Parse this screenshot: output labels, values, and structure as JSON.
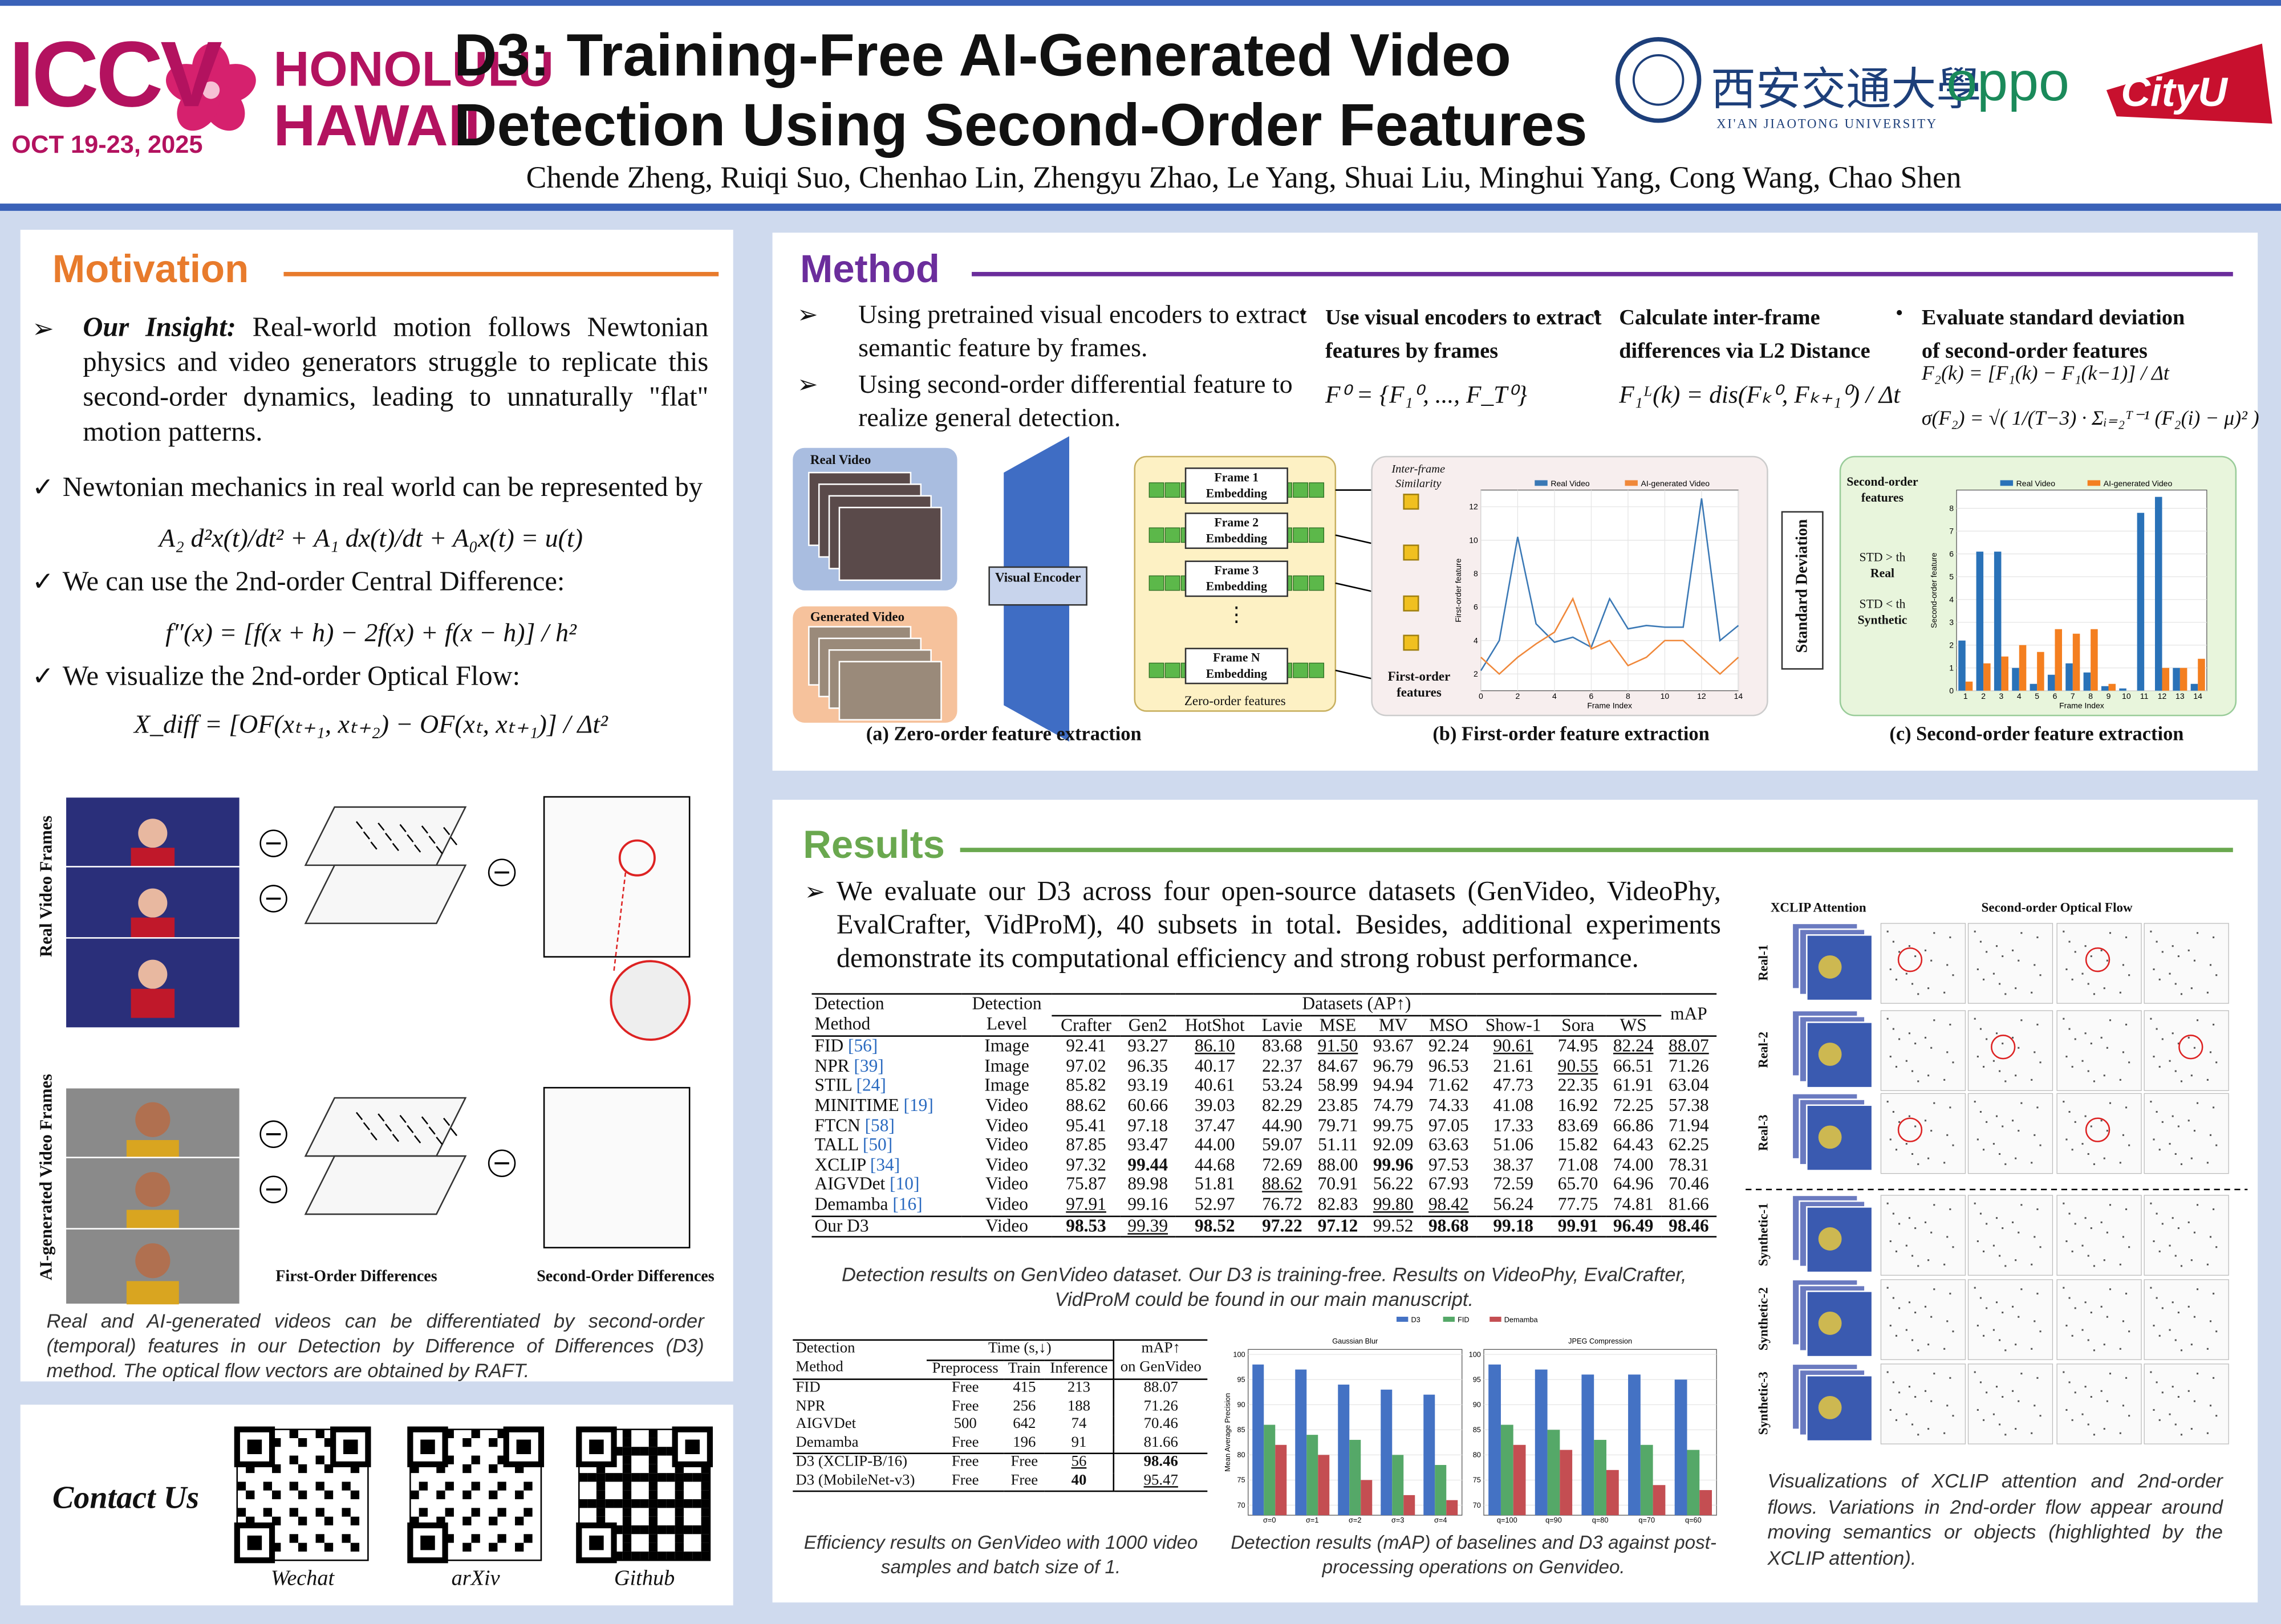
{
  "header": {
    "conference": "ICCV",
    "dates": "OCT 19-23, 2025",
    "location": [
      "HONOLULU",
      "HAWAII"
    ],
    "title": [
      "D3: Training-Free AI-Generated Video",
      "Detection Using Second-Order Features"
    ],
    "authors": "Chende Zheng, Ruiqi Suo, Chenhao Lin, Zhengyu Zhao, Le Yang, Shuai Liu, Minghui Yang, Cong Wang, Chao Shen",
    "affiliations": [
      "西安交通大學",
      "XI'AN JIAOTONG UNIVERSITY",
      "oppo",
      "CityU"
    ]
  },
  "motivation": {
    "heading": "Motivation",
    "insight_label": "Our Insight:",
    "insight": "Real-world motion follows Newtonian physics and video generators struggle to replicate this second-order dynamics, leading to unnaturally \"flat\" motion patterns.",
    "points": [
      {
        "text": "Newtonian mechanics in real world can be represented by",
        "formula": "A₂ d²x(t)/dt² + A₁ dx(t)/dt + A₀x(t) = u(t)"
      },
      {
        "text": "We can use the 2nd-order Central Difference:",
        "formula": "f″(x) = [f(x + h) − 2f(x) + f(x − h)] / h²"
      },
      {
        "text": "We visualize the 2nd-order Optical Flow:",
        "formula": "X_diff = [OF(xₜ₊₁, xₜ₊₂) − OF(xₜ, xₜ₊₁)] / Δt²"
      }
    ],
    "figure_labels": [
      "Real Video Frames",
      "AI-generated Video Frames",
      "First-Order Differences",
      "Second-Order Differences"
    ],
    "caption": "Real and AI-generated videos can be differentiated by second-order (temporal) features in our Detection by Difference of Differences (D3) method. The optical flow vectors are obtained by RAFT."
  },
  "contact": {
    "heading": "Contact Us",
    "qr_labels": [
      "Wechat",
      "arXiv",
      "Github"
    ]
  },
  "method": {
    "heading": "Method",
    "bullets": [
      "Using pretrained visual encoders to extract semantic feature by frames.",
      "Using second-order differential feature to realize general detection."
    ],
    "steps": [
      {
        "title": "Use visual encoders to extract features by frames",
        "formulas": [
          "F⁰ = {F₁⁰, ..., F_T⁰}"
        ]
      },
      {
        "title": "Calculate inter-frame differences via L2 Distance",
        "formulas": [
          "F₁ᴸ(k) = dis(Fₖ⁰, Fₖ₊₁⁰) / Δt"
        ]
      },
      {
        "title": "Evaluate standard deviation of second-order features",
        "formulas": [
          "F₂(k) = [F₁(k) − F₁(k−1)] / Δt",
          "σ(F₂) = √( 1/(T−3) · Σᵢ₌₂ᵀ⁻¹ (F₂(i) − μ)² )"
        ]
      }
    ],
    "figure": {
      "real_video": "Real Video",
      "generated_video": "Generated Video",
      "encoder": "Visual Encoder",
      "embeddings": [
        "Frame 1 Embedding",
        "Frame 2 Embedding",
        "Frame 3 Embedding",
        "Frame N Embedding"
      ],
      "zero_order": "Zero-order features",
      "similarity": "Inter-frame Similarity",
      "first_order": "First-order features",
      "std": "Standard Deviation",
      "second_order": "Second-order features",
      "rules": [
        "STD > th",
        "Real",
        "STD < th",
        "Synthetic"
      ],
      "captions": [
        "(a) Zero-order feature extraction",
        "(b) First-order feature extraction",
        "(c) Second-order feature extraction"
      ]
    },
    "first_order_chart": {
      "type": "line",
      "xlabel": "Frame Index",
      "ylabel": "First-order feature",
      "xlim": [
        0,
        14
      ],
      "xticks": [
        0,
        2,
        4,
        6,
        8,
        10,
        12,
        14
      ],
      "ylim": [
        1,
        13
      ],
      "yticks": [
        2,
        4,
        6,
        8,
        10,
        12
      ],
      "x": [
        0,
        1,
        2,
        3,
        4,
        5,
        6,
        7,
        8,
        9,
        10,
        11,
        12,
        13,
        14
      ],
      "series": [
        {
          "name": "Real Video",
          "color": "#3a78b5",
          "values": [
            2.2,
            4,
            10.2,
            5,
            3.9,
            4.2,
            3.6,
            6.5,
            4.7,
            4.9,
            4.8,
            4.8,
            12.5,
            4,
            4.9
          ]
        },
        {
          "name": "AI-generated Video",
          "color": "#f0883a",
          "values": [
            3,
            2,
            3,
            3.8,
            4.5,
            6.5,
            3.5,
            4,
            2.5,
            3,
            4,
            4,
            3,
            2,
            3
          ]
        }
      ]
    },
    "second_order_chart": {
      "type": "bar",
      "xlabel": "Frame Index",
      "ylabel": "Second-order feature",
      "categories": [
        "1",
        "2",
        "3",
        "4",
        "5",
        "6",
        "7",
        "8",
        "9",
        "10",
        "11",
        "12",
        "13",
        "14"
      ],
      "ylim": [
        0,
        8.8
      ],
      "yticks": [
        0,
        1,
        2,
        3,
        4,
        5,
        6,
        7,
        8
      ],
      "series": [
        {
          "name": "Real Video",
          "color": "#2a72b8",
          "values": [
            2.2,
            6.1,
            6.1,
            1,
            0.3,
            0.7,
            1.2,
            0.8,
            0.2,
            0.1,
            7.8,
            8.5,
            1,
            0.3
          ]
        },
        {
          "name": "AI-generated Video",
          "color": "#f47f20",
          "values": [
            0.4,
            1.2,
            1.5,
            2,
            1.7,
            2.7,
            2.5,
            2.7,
            0.3,
            0,
            0,
            1,
            1,
            1.4
          ]
        }
      ]
    }
  },
  "results": {
    "heading": "Results",
    "intro": "We evaluate our D3 across four open-source datasets (GenVideo, VideoPhy, EvalCrafter, VidProM), 40 subsets in total. Besides, additional experiments demonstrate its computational efficiency and strong robust performance.",
    "main_table": {
      "method_header": [
        "Detection",
        "Method"
      ],
      "level_header": [
        "Detection",
        "Level"
      ],
      "datasets_header": "Datasets (AP↑)",
      "map_header": "mAP",
      "columns": [
        "Crafter",
        "Gen2",
        "HotShot",
        "Lavie",
        "MSE",
        "MV",
        "MSO",
        "Show-1",
        "Sora",
        "WS"
      ],
      "rows": [
        {
          "method": "FID",
          "ref": "[56]",
          "level": "Image",
          "values": [
            "92.41",
            "93.27",
            "86.10",
            "83.68",
            "91.50",
            "93.67",
            "92.24",
            "90.61",
            "74.95",
            "82.24"
          ],
          "map": "88.07"
        },
        {
          "method": "NPR",
          "ref": "[39]",
          "level": "Image",
          "values": [
            "97.02",
            "96.35",
            "40.17",
            "22.37",
            "84.67",
            "96.79",
            "96.53",
            "21.61",
            "90.55",
            "66.51"
          ],
          "map": "71.26"
        },
        {
          "method": "STIL",
          "ref": "[24]",
          "level": "Image",
          "values": [
            "85.82",
            "93.19",
            "40.61",
            "53.24",
            "58.99",
            "94.94",
            "71.62",
            "47.73",
            "22.35",
            "61.91"
          ],
          "map": "63.04"
        },
        {
          "method": "MINITIME",
          "ref": "[19]",
          "level": "Video",
          "values": [
            "88.62",
            "60.66",
            "39.03",
            "82.29",
            "23.85",
            "74.79",
            "74.33",
            "41.08",
            "16.92",
            "72.25"
          ],
          "map": "57.38"
        },
        {
          "method": "FTCN",
          "ref": "[58]",
          "level": "Video",
          "values": [
            "95.41",
            "97.18",
            "37.47",
            "44.90",
            "79.71",
            "99.75",
            "97.05",
            "17.33",
            "83.69",
            "66.86"
          ],
          "map": "71.94"
        },
        {
          "method": "TALL",
          "ref": "[50]",
          "level": "Video",
          "values": [
            "87.85",
            "93.47",
            "44.00",
            "59.07",
            "51.11",
            "92.09",
            "63.63",
            "51.06",
            "15.82",
            "64.43"
          ],
          "map": "62.25"
        },
        {
          "method": "XCLIP",
          "ref": "[34]",
          "level": "Video",
          "values": [
            "97.32",
            "99.44",
            "44.68",
            "72.69",
            "88.00",
            "99.96",
            "97.53",
            "38.37",
            "71.08",
            "74.00"
          ],
          "map": "78.31"
        },
        {
          "method": "AIGVDet",
          "ref": "[10]",
          "level": "Video",
          "values": [
            "75.87",
            "89.98",
            "51.81",
            "88.62",
            "70.91",
            "56.22",
            "67.93",
            "72.59",
            "65.70",
            "64.96"
          ],
          "map": "70.46"
        },
        {
          "method": "Demamba",
          "ref": "[16]",
          "level": "Video",
          "values": [
            "97.91",
            "99.16",
            "52.97",
            "76.72",
            "82.83",
            "99.80",
            "98.42",
            "56.24",
            "77.75",
            "74.81"
          ],
          "map": "81.66"
        },
        {
          "method": "Our D3",
          "level": "Video",
          "values": [
            "98.53",
            "99.39",
            "98.52",
            "97.22",
            "97.12",
            "99.52",
            "98.68",
            "99.18",
            "99.91",
            "96.49"
          ],
          "map": "98.46"
        }
      ],
      "emphasis": {
        "bold": [
          [
            6,
            1
          ],
          [
            6,
            5
          ],
          [
            9,
            0
          ],
          [
            9,
            2
          ],
          [
            9,
            3
          ],
          [
            9,
            4
          ],
          [
            9,
            6
          ],
          [
            9,
            7
          ],
          [
            9,
            8
          ],
          [
            9,
            9
          ],
          [
            9,
            10
          ]
        ],
        "underline": [
          [
            0,
            2
          ],
          [
            0,
            4
          ],
          [
            0,
            7
          ],
          [
            0,
            9
          ],
          [
            0,
            10
          ],
          [
            1,
            8
          ],
          [
            7,
            3
          ],
          [
            8,
            0
          ],
          [
            8,
            5
          ],
          [
            8,
            6
          ],
          [
            9,
            1
          ]
        ]
      }
    },
    "main_caption": "Detection results on GenVideo dataset. Our D3 is training-free. Results on VideoPhy, EvalCrafter, VidProM could be found in our main manuscript.",
    "efficiency_table": {
      "method_header": [
        "Detection",
        "Method"
      ],
      "time_header": "Time (s,↓)",
      "map_header": [
        "mAP↑",
        "on GenVideo"
      ],
      "subheaders": [
        "Preprocess",
        "Train",
        "Inference"
      ],
      "rows": [
        [
          "FID",
          "Free",
          "415",
          "213",
          "88.07"
        ],
        [
          "NPR",
          "Free",
          "256",
          "188",
          "71.26"
        ],
        [
          "AIGVDet",
          "500",
          "642",
          "74",
          "70.46"
        ],
        [
          "Demamba",
          "Free",
          "196",
          "91",
          "81.66"
        ],
        [
          "D3 (XCLIP-B/16)",
          "Free",
          "Free",
          "56",
          "98.46"
        ],
        [
          "D3 (MobileNet-v3)",
          "Free",
          "Free",
          "40",
          "95.47"
        ]
      ],
      "emphasis": {
        "bold": [
          [
            4,
            4
          ],
          [
            5,
            3
          ]
        ],
        "underline": [
          [
            4,
            3
          ],
          [
            5,
            4
          ]
        ]
      }
    },
    "efficiency_caption": "Efficiency results on GenVideo with 1000 video samples and batch size of 1.",
    "robustness_charts": [
      {
        "type": "bar",
        "title": "Gaussian Blur",
        "ylabel": "Mean Average Precision",
        "categories": [
          "σ=0",
          "σ=1",
          "σ=2",
          "σ=3",
          "σ=4"
        ],
        "ylim": [
          68,
          101
        ],
        "yticks": [
          70,
          75,
          80,
          85,
          90,
          95,
          100
        ],
        "series": [
          {
            "name": "D3",
            "color": "#4472c4",
            "values": [
              98,
              97,
              94,
              93,
              92
            ]
          },
          {
            "name": "FID",
            "color": "#55a868",
            "values": [
              86,
              84,
              83,
              80,
              78
            ]
          },
          {
            "name": "Demamba",
            "color": "#c44e52",
            "values": [
              82,
              80,
              75,
              72,
              71
            ]
          }
        ]
      },
      {
        "type": "bar",
        "title": "JPEG Compression",
        "categories": [
          "q=100",
          "q=90",
          "q=80",
          "q=70",
          "q=60"
        ],
        "ylim": [
          68,
          101
        ],
        "yticks": [
          70,
          75,
          80,
          85,
          90,
          95,
          100
        ],
        "series": [
          {
            "name": "D3",
            "color": "#4472c4",
            "values": [
              98,
              97,
              96,
              96,
              95
            ]
          },
          {
            "name": "FID",
            "color": "#55a868",
            "values": [
              86,
              85,
              83,
              82,
              81
            ]
          },
          {
            "name": "Demamba",
            "color": "#c44e52",
            "values": [
              82,
              81,
              77,
              74,
              73
            ]
          }
        ]
      }
    ],
    "robustness_caption": "Detection results (mAP) of baselines and D3 against post-processing operations on Genvideo.",
    "visualization": {
      "column_headers": [
        "XCLIP Attention",
        "Second-order Optical Flow"
      ],
      "row_labels": [
        "Real-1",
        "Real-2",
        "Real-3",
        "Synthetic-1",
        "Synthetic-2",
        "Synthetic-3"
      ],
      "caption": "Visualizations of XCLIP attention and 2nd-order flows. Variations in 2nd-order flow appear around moving semantics or objects (highlighted by the XCLIP attention)."
    }
  }
}
